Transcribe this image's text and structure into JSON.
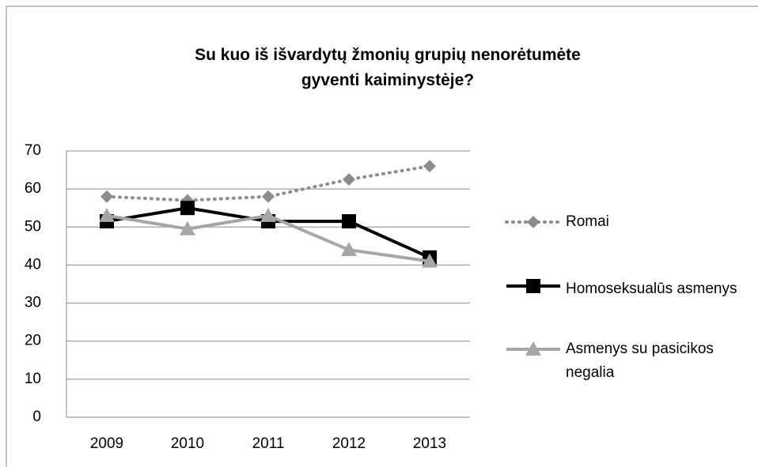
{
  "chart_data": {
    "type": "line",
    "title": [
      "Su kuo iš išvardytų žmonių grupių nenorėtumėte",
      "gyventi kaiminystėje?"
    ],
    "categories": [
      "2009",
      "2010",
      "2011",
      "2012",
      "2013"
    ],
    "series": [
      {
        "name": "Romai",
        "color": "#8c8c8c",
        "values": [
          58,
          57,
          58,
          62.5,
          66
        ]
      },
      {
        "name": "Homoseksualūs asmenys",
        "color": "#000000",
        "values": [
          51.5,
          55,
          51.5,
          51.5,
          42
        ]
      },
      {
        "name": "Asmenys su pasicikos negalia",
        "color": "#a6a6a6",
        "values": [
          53,
          49.5,
          53,
          44,
          41
        ]
      }
    ],
    "ylim": [
      0,
      70
    ],
    "yticks": [
      0,
      10,
      20,
      30,
      40,
      50,
      60,
      70
    ],
    "grid": true,
    "legend": "right"
  }
}
